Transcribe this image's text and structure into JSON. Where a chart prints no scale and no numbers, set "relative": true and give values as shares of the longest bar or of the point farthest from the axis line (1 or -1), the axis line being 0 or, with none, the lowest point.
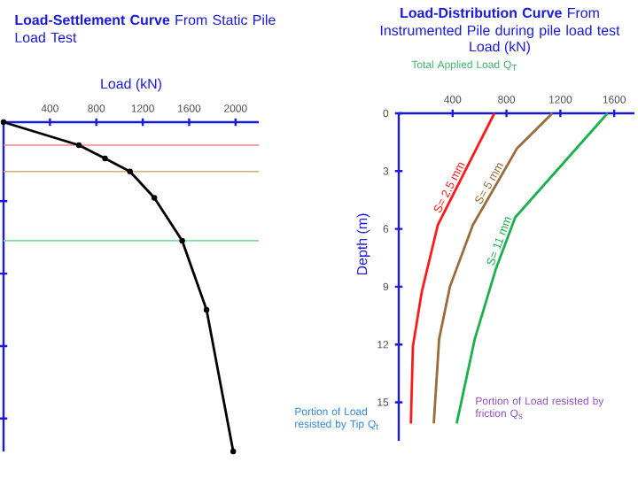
{
  "chart_data": [
    {
      "type": "line",
      "title": "**Load-Settlement Curve** From Static Pile Load Test",
      "xlabel": "Load (kN)",
      "relative": true,
      "marker": "circle",
      "xlim": [
        0,
        2200
      ],
      "xticks": [
        400,
        800,
        1200,
        1600,
        2000
      ],
      "series": [
        {
          "color": "#000000",
          "x": [
            0,
            650,
            875,
            1090,
            1300,
            1540,
            1750,
            1980
          ],
          "values": [
            0,
            -0.07,
            -0.11,
            -0.15,
            -0.23,
            -0.36,
            -0.57,
            -1
          ]
        }
      ],
      "ref_lines": [
        {
          "axis": "y",
          "value": -0.07,
          "color": "#ff8080"
        },
        {
          "axis": "y",
          "value": -0.15,
          "color": "#d2aa80"
        },
        {
          "axis": "y",
          "value": -0.36,
          "color": "#80dca0"
        }
      ]
    },
    {
      "type": "line",
      "title": "**Load-Distribution Curve** From Instrumented Pile during pile load test",
      "xlabel": "Load (kN)",
      "ylabel": "Depth (m)",
      "xlim": [
        0,
        1750
      ],
      "xticks": [
        400,
        800,
        1200,
        1600
      ],
      "ylim": [
        17,
        0
      ],
      "yticks": [
        0,
        3,
        6,
        9,
        12,
        15
      ],
      "series": [
        {
          "name": "S= 2.5 mm",
          "color": "#ff1a1a",
          "x": [
            710,
            550,
            290,
            170,
            105,
            90
          ],
          "values": [
            0,
            2.2,
            5.8,
            9.3,
            12.1,
            16.1
          ]
        },
        {
          "name": "S= 5 mm",
          "color": "#9c6b3c",
          "x": [
            1140,
            880,
            550,
            380,
            300,
            260
          ],
          "values": [
            0,
            1.8,
            5.8,
            9,
            11.7,
            16.1
          ]
        },
        {
          "name": "S= 11 mm",
          "color": "#19b24a",
          "x": [
            1550,
            865,
            720,
            565,
            430
          ],
          "values": [
            0,
            5.4,
            8.1,
            11.7,
            16.1
          ]
        }
      ],
      "annotations": [
        "Total Applied Load Q$_{T}$",
        "Portion of Load resisted by Tip Q$_{t}$",
        "Portion of Load resisted by friction Q$_{s}$"
      ]
    }
  ]
}
